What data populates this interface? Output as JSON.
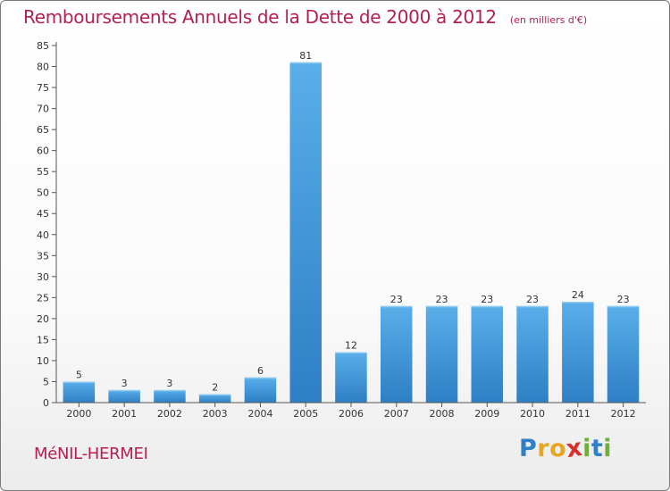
{
  "chart_data": {
    "type": "bar",
    "title": "Remboursements Annuels de la Dette de 2000 à 2012",
    "subtitle": "(en milliers d'€)",
    "categories": [
      "2000",
      "2001",
      "2002",
      "2003",
      "2004",
      "2005",
      "2006",
      "2007",
      "2008",
      "2009",
      "2010",
      "2011",
      "2012"
    ],
    "values": [
      5,
      3,
      3,
      2,
      6,
      81,
      12,
      23,
      23,
      23,
      23,
      24,
      23
    ],
    "ylim": [
      0,
      85
    ],
    "yticks": [
      0,
      5,
      10,
      15,
      20,
      25,
      30,
      35,
      40,
      45,
      50,
      55,
      60,
      65,
      70,
      75,
      80,
      85
    ],
    "grid": false,
    "data_labels": true,
    "bar_color": "#4ea3de",
    "bar_color_light": "#5aaeea",
    "bar_color_dark": "#2e7fc4"
  },
  "footer": {
    "commune": "MéNIL-HERMEI",
    "logo_letters": [
      "P",
      "r",
      "o",
      "x",
      "i",
      "t",
      "i"
    ],
    "logo_colors": [
      "#2f80c7",
      "#e8a523",
      "#e8a523",
      "#d7302c",
      "#6fae3a",
      "#2f80c7",
      "#6fae3a"
    ]
  },
  "colors": {
    "title": "#b3214e",
    "axis": "#555555"
  }
}
